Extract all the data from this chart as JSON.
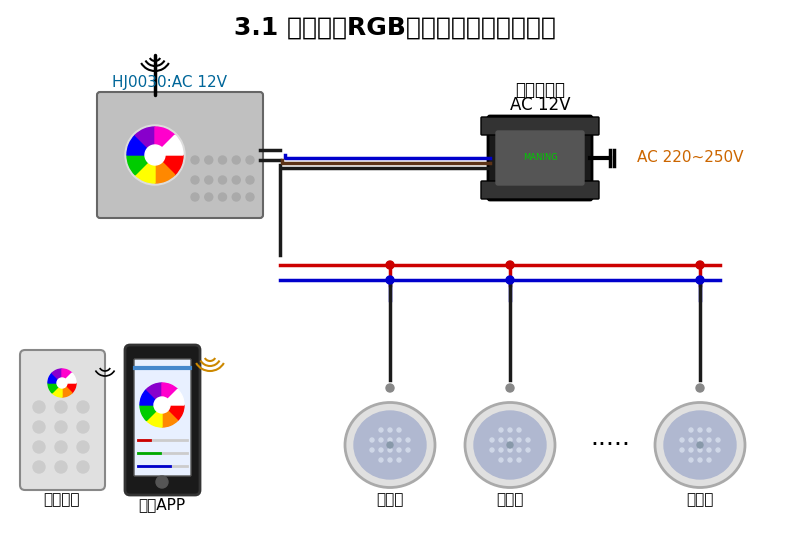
{
  "title": "3.1 水下灯在RGB模式中的连线应用示例",
  "title_fontsize": 18,
  "bg_color": "#ffffff",
  "controller_label": "HJ0030:AC 12V",
  "transformer_label1": "交流变压器",
  "transformer_label2": "AC 12V",
  "ac_label": "AC 220~250V",
  "remote_label": "触摸手柄",
  "app_label": "手机APP",
  "light_label": "水下灯",
  "dots": "·····",
  "wire_red": "#cc0000",
  "wire_blue": "#0000cc",
  "wire_black": "#1a1a1a",
  "wire_brown": "#5c3317",
  "controller_box_color": "#c0c0c0",
  "transformer_box_color": "#1a1a1a",
  "remote_color": "#e0e0e0",
  "phone_color": "#1a1a1a",
  "light_outer": "#e0e0e0",
  "light_inner": "#b0b8d0"
}
